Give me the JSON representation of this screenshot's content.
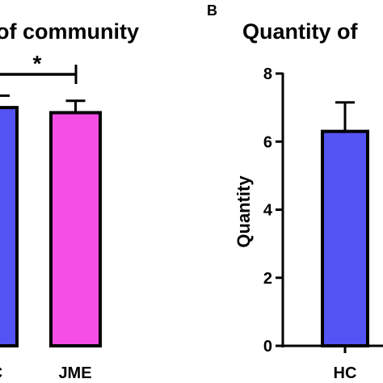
{
  "chart_data": [
    {
      "type": "bar",
      "title": "of community",
      "categories": [
        "C",
        "JME"
      ],
      "values": [
        7.0,
        6.85
      ],
      "errors": [
        null,
        0.35
      ],
      "colors": [
        "#5454f4",
        "#f44ee6"
      ],
      "significance": {
        "label": "*"
      }
    },
    {
      "type": "bar",
      "panel_label": "B",
      "title": "Quantity of",
      "ylabel": "Quantity",
      "ylim": [
        0,
        8
      ],
      "yticks": [
        0,
        2,
        4,
        6,
        8
      ],
      "categories": [
        "HC"
      ],
      "values": [
        6.3
      ],
      "errors": [
        0.85
      ],
      "colors": [
        "#5454f4"
      ],
      "grid": false
    }
  ]
}
